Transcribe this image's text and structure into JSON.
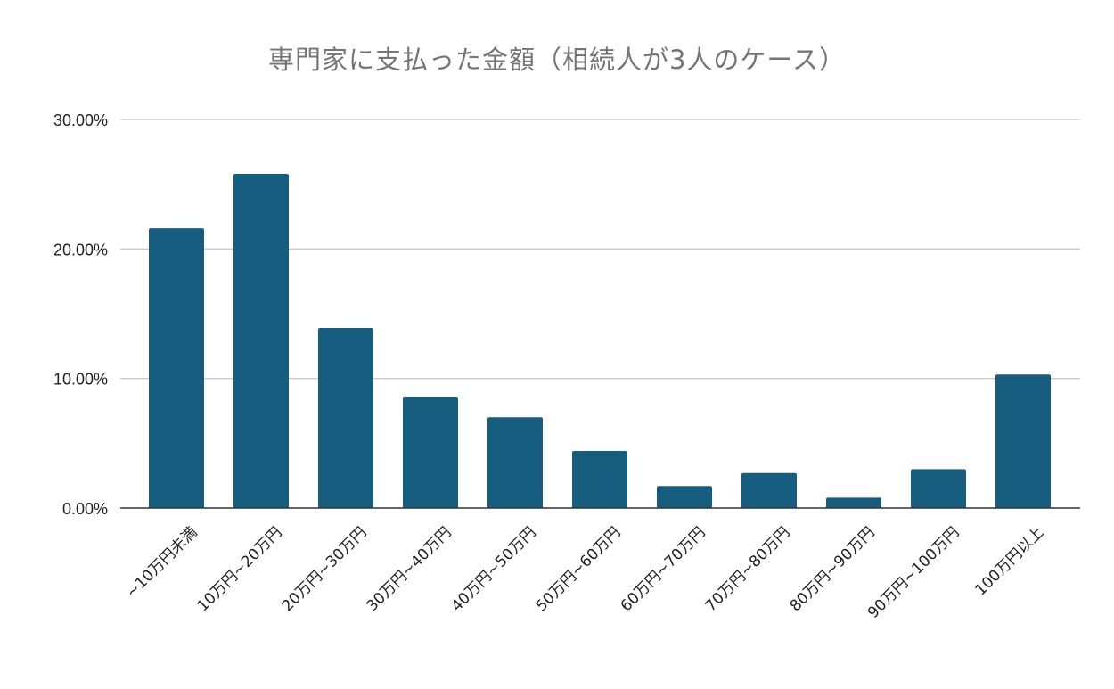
{
  "chart_data": {
    "type": "bar",
    "title": "専門家に支払った金額（相続人が3人のケース）",
    "xlabel": "",
    "ylabel": "",
    "categories": [
      "~10万円未満",
      "10万円~20万円",
      "20万円~30万円",
      "30万円~40万円",
      "40万円~50万円",
      "50万円~60万円",
      "60万円~70万円",
      "70万円~80万円",
      "80万円~90万円",
      "90万円~100万円",
      "100万円以上"
    ],
    "values": [
      21.6,
      25.8,
      13.9,
      8.6,
      7.0,
      4.4,
      1.7,
      2.7,
      0.8,
      3.0,
      10.3
    ],
    "ylim": [
      0,
      30
    ],
    "yticks": [
      0,
      10,
      20,
      30
    ],
    "ytick_labels": [
      "0.00%",
      "10.00%",
      "20.00%",
      "30.00%"
    ],
    "grid": true,
    "legend": "none",
    "colors": {
      "bar": "#175d80",
      "grid": "#cccccc",
      "axis": "#333333",
      "title": "#757575"
    }
  }
}
